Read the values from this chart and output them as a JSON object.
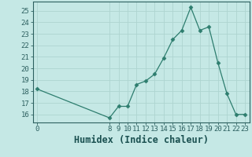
{
  "xlabel": "Humidex (Indice chaleur)",
  "x": [
    0,
    8,
    9,
    10,
    11,
    12,
    13,
    14,
    15,
    16,
    17,
    18,
    19,
    20,
    21,
    22,
    23
  ],
  "y": [
    18.2,
    15.7,
    16.7,
    16.7,
    18.6,
    18.9,
    19.5,
    20.9,
    22.5,
    23.3,
    25.3,
    23.3,
    23.6,
    20.5,
    17.8,
    16.0,
    16.0
  ],
  "line_color": "#2d7d6e",
  "marker": "D",
  "marker_size": 2.5,
  "bg_color": "#c5e8e5",
  "grid_color": "#aed4d0",
  "spine_color": "#2d6060",
  "ylim": [
    15.3,
    25.8
  ],
  "yticks": [
    16,
    17,
    18,
    19,
    20,
    21,
    22,
    23,
    24,
    25
  ],
  "xticks": [
    0,
    8,
    9,
    10,
    11,
    12,
    13,
    14,
    15,
    16,
    17,
    18,
    19,
    20,
    21,
    22,
    23
  ],
  "font_color": "#1a5050",
  "tick_fontsize": 6.5,
  "xlabel_fontsize": 8.5
}
